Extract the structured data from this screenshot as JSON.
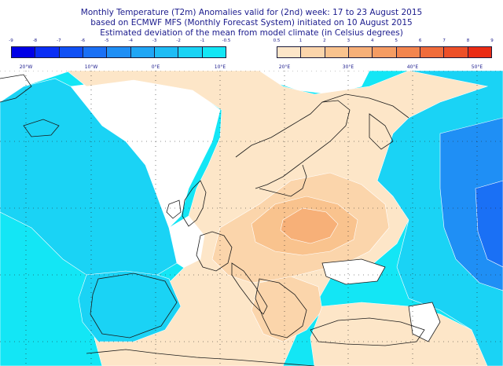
{
  "title": {
    "line1": "Monthly Temperature (T2m) Anomalies valid for (2nd) week: 17 to 23 August 2015",
    "line2": "based on ECMWF MFS (Monthly Forecast System) initiated on 10 August 2015",
    "line3": "Estimated deviation of the mean from model climate (in Celsius degrees)"
  },
  "legend": {
    "negative_ticks": [
      "-9",
      "-8",
      "-7",
      "-6",
      "-5",
      "-4",
      "-3",
      "-2",
      "-1",
      "-0.5"
    ],
    "negative_colors": [
      "#0000e6",
      "#0a2ef5",
      "#1050f5",
      "#1a70f5",
      "#1f8ff5",
      "#20a6f5",
      "#1ebcf5",
      "#1ad3f5",
      "#13e6f5"
    ],
    "positive_ticks": [
      "0.5",
      "1",
      "2",
      "3",
      "4",
      "5",
      "6",
      "7",
      "8",
      "9"
    ],
    "positive_colors": [
      "#fde6c8",
      "#fbd5ab",
      "#f9c38e",
      "#f7b078",
      "#f59c63",
      "#f3854e",
      "#f06c3b",
      "#ed5029",
      "#ea2c15"
    ]
  },
  "map": {
    "longitude_labels": [
      "20°W",
      "10°W",
      "0°E",
      "10°E",
      "20°E",
      "30°E",
      "40°E",
      "50°E"
    ],
    "colors": {
      "ocean_cold": "#13e6f5",
      "ocean_cold2": "#1ad3f5",
      "cold_strong": "#1f8ff5",
      "cold_stronger": "#1a70f5",
      "warm_light": "#fde6c8",
      "warm_mid": "#fbd5ab",
      "warm_strong": "#f9c38e",
      "warm_hot": "#f7b078",
      "neutral": "#ffffff",
      "coast": "#1a1a1a",
      "grid": "#222222",
      "contour": "#ffffff"
    }
  }
}
